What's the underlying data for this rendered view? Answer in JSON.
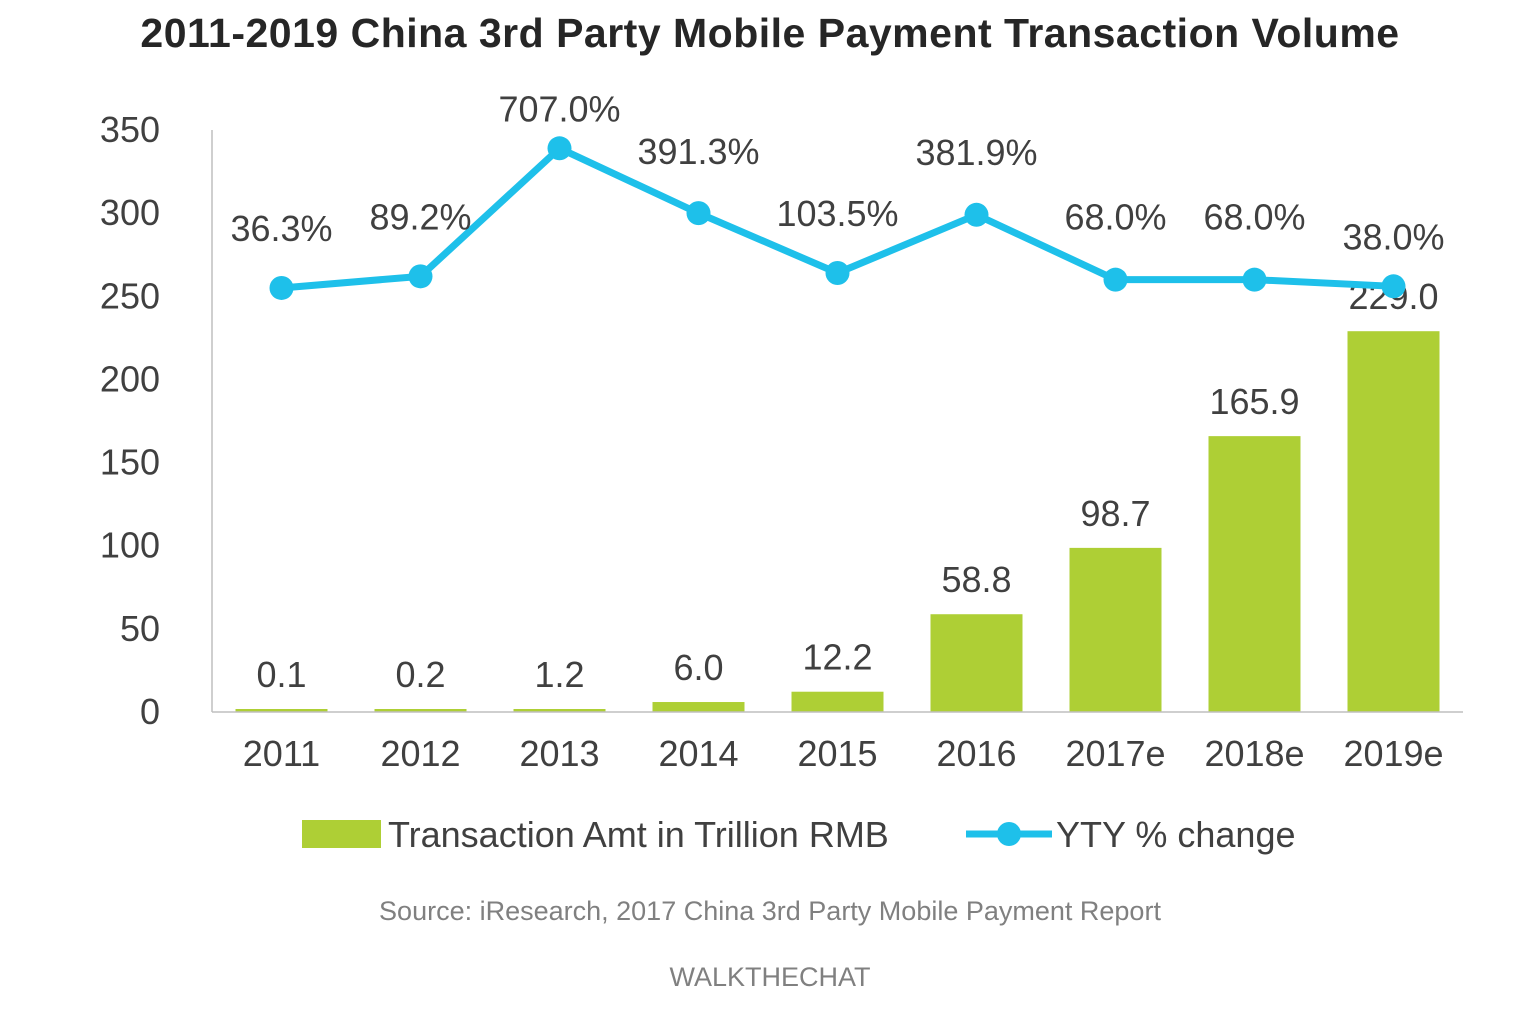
{
  "chart_data": {
    "type": "bar+line",
    "title": "2011-2019 China 3rd Party Mobile Payment Transaction Volume",
    "categories": [
      "2011",
      "2012",
      "2013",
      "2014",
      "2015",
      "2016",
      "2017e",
      "2018e",
      "2019e"
    ],
    "series": [
      {
        "name": "Transaction Amt in Trillion RMB",
        "type": "bar",
        "color": "#aecf35",
        "values": [
          0.1,
          0.2,
          1.2,
          6.0,
          12.2,
          58.8,
          98.7,
          165.9,
          229.0
        ],
        "labels": [
          "0.1",
          "0.2",
          "1.2",
          "6.0",
          "12.2",
          "58.8",
          "98.7",
          "165.9",
          "229.0"
        ]
      },
      {
        "name": "YTY % change",
        "type": "line",
        "color": "#1ec0ea",
        "labels": [
          "36.3%",
          "89.2%",
          "707.0%",
          "391.3%",
          "103.5%",
          "381.9%",
          "68.0%",
          "68.0%",
          "38.0%"
        ],
        "plotted_values": [
          255,
          262,
          339,
          300,
          264,
          299,
          260,
          260,
          256
        ]
      }
    ],
    "ylim": [
      0,
      350
    ],
    "yticks": [
      0,
      50,
      100,
      150,
      200,
      250,
      300,
      350
    ],
    "xlabel": "",
    "ylabel": "",
    "legend_position": "bottom",
    "grid": false
  },
  "source_text": "Source: iResearch, 2017 China 3rd Party Mobile Payment Report",
  "brand_text": "WALKTHECHAT"
}
